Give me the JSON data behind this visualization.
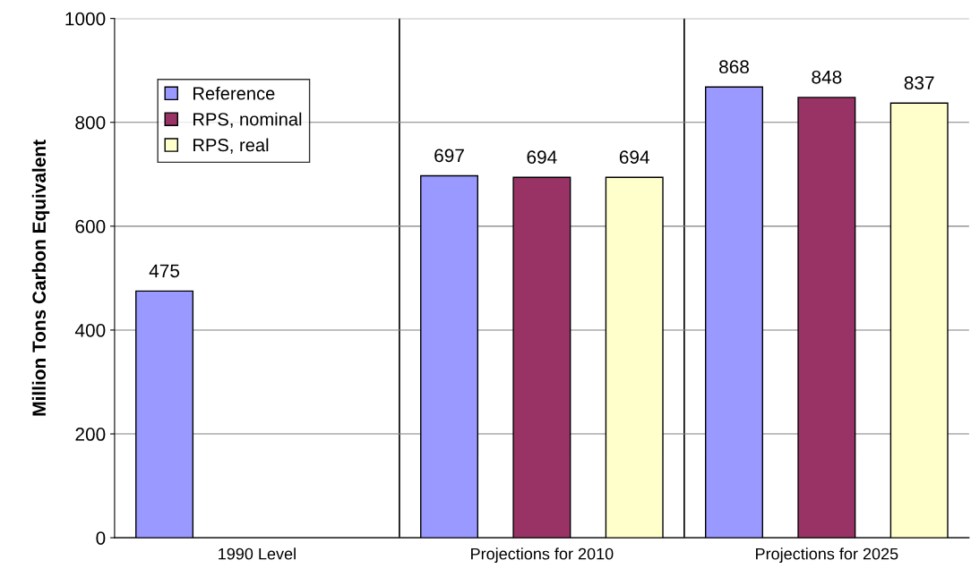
{
  "chart_data": {
    "type": "bar",
    "ylabel": "Million Tons Carbon Equivalent",
    "categories": [
      "1990 Level",
      "Projections for 2010",
      "Projections for 2025"
    ],
    "series": [
      {
        "name": "Reference",
        "color": "#9999ff",
        "values": [
          475,
          697,
          868
        ]
      },
      {
        "name": "RPS, nominal",
        "color": "#993366",
        "values": [
          null,
          694,
          848
        ]
      },
      {
        "name": "RPS, real",
        "color": "#ffffcc",
        "values": [
          null,
          694,
          837
        ]
      }
    ],
    "ylim": [
      0,
      1000
    ],
    "yticks": [
      0,
      200,
      400,
      600,
      800,
      1000
    ],
    "grid": "y",
    "legend": "top left",
    "data_labels": true
  }
}
